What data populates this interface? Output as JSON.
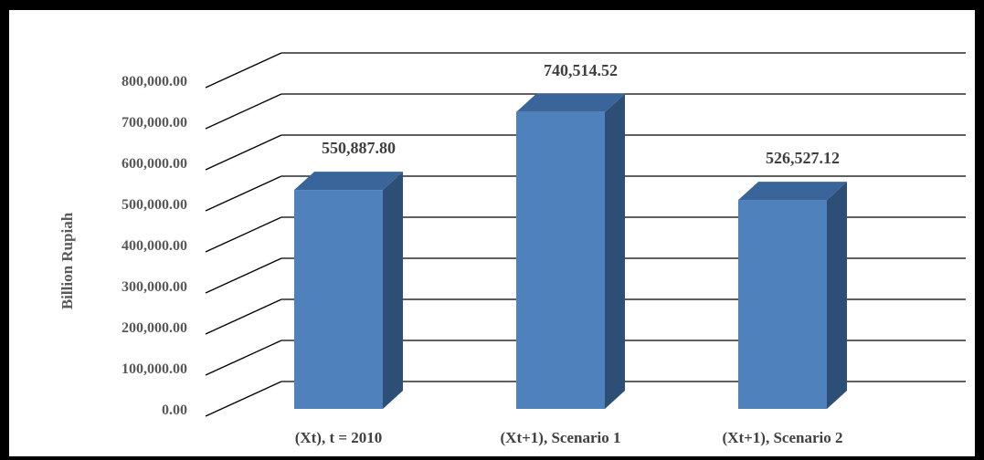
{
  "chart_data": {
    "type": "bar",
    "style": "3d-column",
    "categories": [
      "(Xt), t = 2010",
      "(Xt+1), Scenario 1",
      "(Xt+1), Scenario 2"
    ],
    "values": [
      550887.8,
      740514.52,
      526527.12
    ],
    "data_labels": [
      "550,887.80",
      "740,514.52",
      "526,527.12"
    ],
    "ylabel": "Billion  Rupiah",
    "xlabel": "",
    "ylim": [
      0,
      800000
    ],
    "yticks": [
      "0.00",
      "100,000.00",
      "200,000.00",
      "300,000.00",
      "400,000.00",
      "500,000.00",
      "600,000.00",
      "700,000.00",
      "800,000.00"
    ],
    "grid": true,
    "legend": "none",
    "colors": {
      "front": "#4F81BD",
      "side": "#2E4F75",
      "top": "#3A659A",
      "grid": "#000000",
      "background": "#FFFFFF",
      "border": "#000000"
    }
  }
}
